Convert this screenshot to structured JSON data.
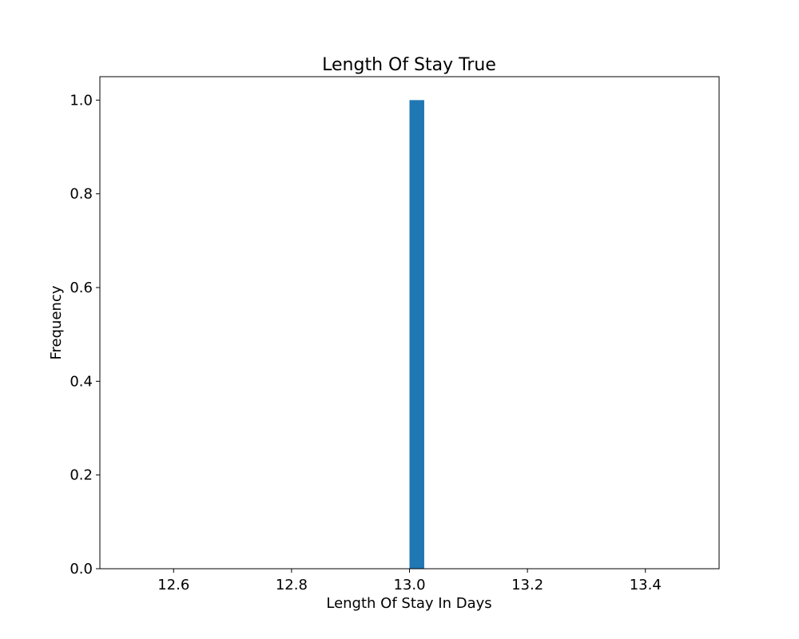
{
  "chart_data": {
    "type": "bar",
    "subtype": "histogram",
    "title": "Length Of Stay True",
    "xlabel": "Length Of Stay In Days",
    "ylabel": "Frequency",
    "xlim": [
      12.475,
      13.525
    ],
    "ylim": [
      0,
      1.05
    ],
    "xticks": [
      "12.6",
      "12.8",
      "13.0",
      "13.2",
      "13.4"
    ],
    "yticks": [
      "0.0",
      "0.2",
      "0.4",
      "0.6",
      "0.8",
      "1.0"
    ],
    "bins": [
      {
        "start": 13.0,
        "end": 13.025,
        "value": 1
      }
    ],
    "grid": false,
    "legend": "none",
    "colors": {
      "bar": "#1f77b4",
      "axis": "#000000"
    }
  }
}
